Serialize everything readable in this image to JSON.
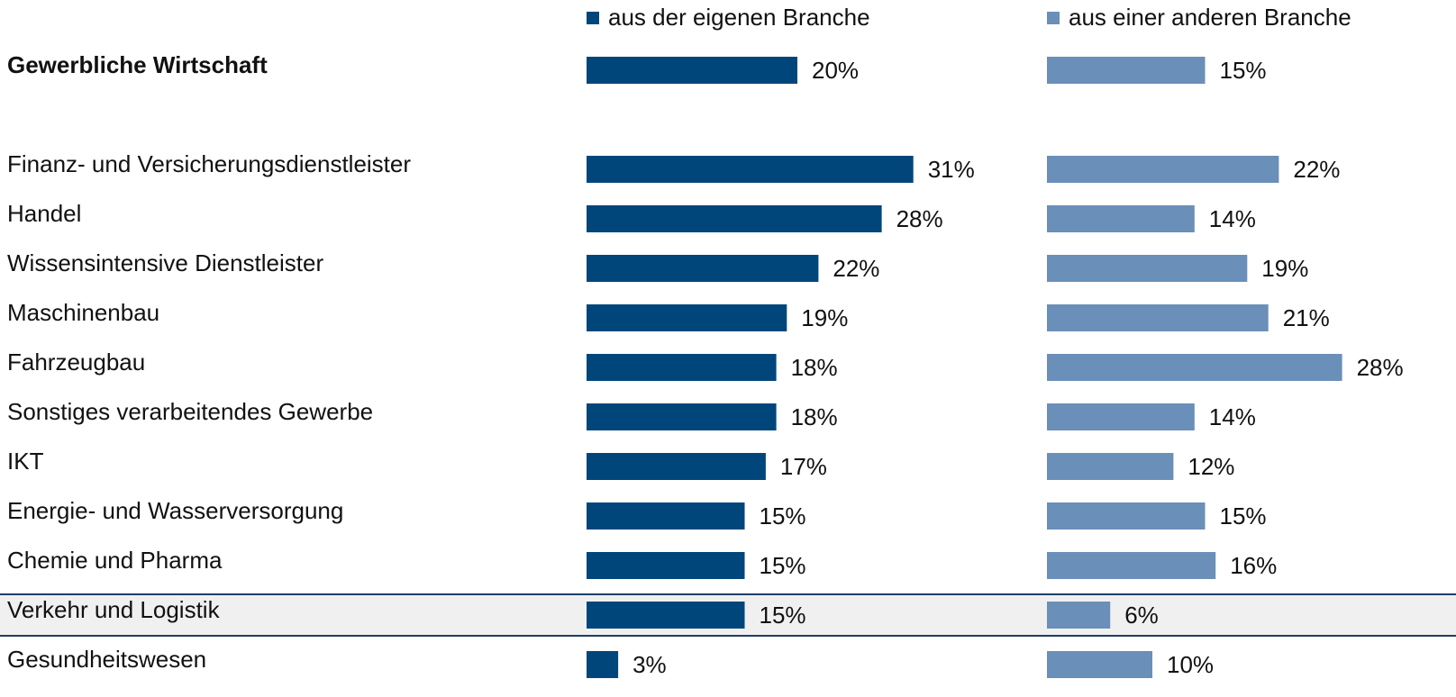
{
  "chart_data": {
    "type": "bar",
    "orientation": "horizontal",
    "categories": [
      "Gewerbliche Wirtschaft",
      "Finanz- und Versicherungsdienstleister",
      "Handel",
      "Wissensintensive Dienstleister",
      "Maschinenbau",
      "Fahrzeugbau",
      "Sonstiges verarbeitendes Gewerbe",
      "IKT",
      "Energie- und Wasserversorgung",
      "Chemie und Pharma",
      "Verkehr und Logistik",
      "Gesundheitswesen"
    ],
    "bold_category": 0,
    "highlight_category": 10,
    "series": [
      {
        "name": "aus der eigenen Branche",
        "color": "#00467a",
        "values": [
          20,
          31,
          28,
          22,
          19,
          18,
          18,
          17,
          15,
          15,
          15,
          3
        ],
        "value_labels": [
          "20%",
          "31%",
          "28%",
          "22%",
          "19%",
          "18%",
          "18%",
          "17%",
          "15%",
          "15%",
          "15%",
          "3%"
        ]
      },
      {
        "name": "aus einer anderen Branche",
        "color": "#6a8fb8",
        "values": [
          15,
          22,
          14,
          19,
          21,
          28,
          14,
          12,
          15,
          16,
          6,
          10
        ],
        "value_labels": [
          "15%",
          "22%",
          "14%",
          "19%",
          "21%",
          "28%",
          "14%",
          "12%",
          "15%",
          "16%",
          "6%",
          "10%"
        ]
      }
    ]
  }
}
